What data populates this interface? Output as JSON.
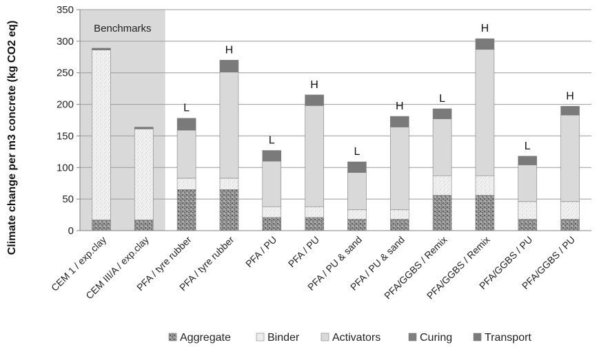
{
  "chart_data": {
    "type": "bar",
    "stacked": true,
    "ylabel": "Climate change per m3 concrete (kg CO2 eq)",
    "ylim": [
      0,
      350
    ],
    "yticks": [
      0,
      50,
      100,
      150,
      200,
      250,
      300,
      350
    ],
    "grid": true,
    "legend_position": "bottom",
    "shaded_region": {
      "label": "Benchmarks",
      "categories_covered": 2
    },
    "categories": [
      "CEM 1 / exp.clay",
      "CEM III/A / exp.clay",
      "PFA / tyre rubber",
      "PFA / tyre rubber",
      "PFA / PU",
      "PFA / PU",
      "PFA / PU & sand",
      "PFA / PU & sand",
      "PFA/GGBS / Remix",
      "PFA/GGBS / Remix",
      "PFA/GGBS / PU",
      "PFA/GGBS / PU"
    ],
    "annotations": [
      "",
      "",
      "L",
      "H",
      "L",
      "H",
      "L",
      "H",
      "L",
      "H",
      "L",
      "H"
    ],
    "series": [
      {
        "name": "Aggregate",
        "color": "#8c8c8c",
        "pattern": "speckled-dark",
        "values": [
          17,
          17,
          65,
          65,
          21,
          21,
          18,
          18,
          56,
          56,
          18,
          18
        ]
      },
      {
        "name": "Binder",
        "color": "#efefef",
        "pattern": "speckled-light",
        "values": [
          269,
          144,
          18,
          18,
          17,
          17,
          15,
          15,
          31,
          31,
          28,
          28
        ]
      },
      {
        "name": "Activators",
        "color": "#d9d9d9",
        "pattern": "solid",
        "values": [
          0,
          0,
          76,
          168,
          72,
          160,
          59,
          131,
          90,
          200,
          58,
          137
        ]
      },
      {
        "name": "Curing",
        "color": "#7f7f7f",
        "pattern": "solid",
        "values": [
          0,
          0,
          0,
          0,
          0,
          0,
          0,
          0,
          0,
          0,
          0,
          0
        ]
      },
      {
        "name": "Transport",
        "color": "#7a7a7a",
        "pattern": "solid",
        "values": [
          3,
          3,
          19,
          19,
          17,
          17,
          17,
          17,
          16,
          17,
          14,
          14
        ]
      }
    ]
  }
}
